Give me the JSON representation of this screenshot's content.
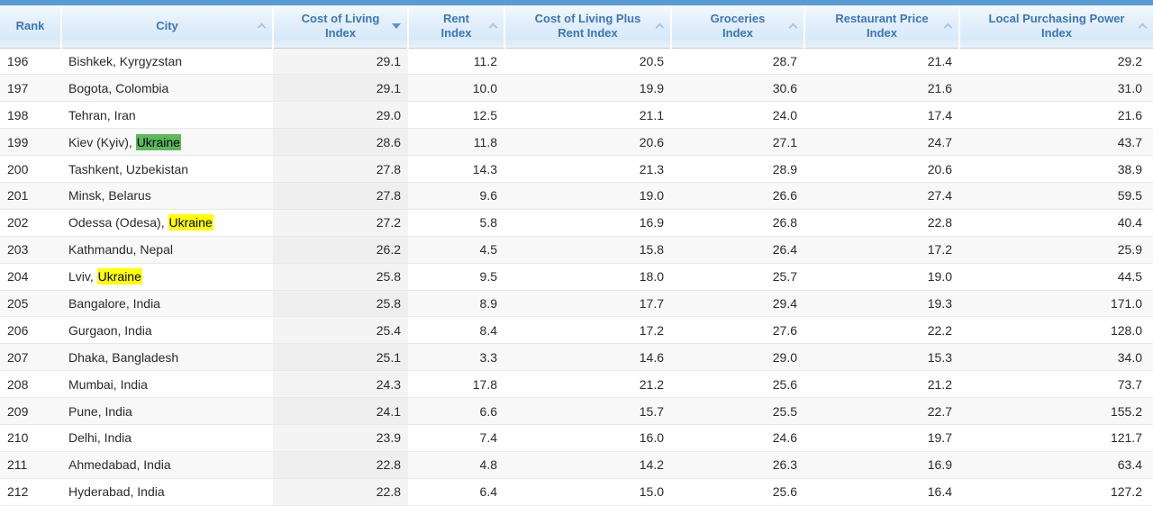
{
  "colors": {
    "top_bar": "#5b9bd5",
    "header_text": "#3a76b8",
    "active_sort_caret": "#5d93c7",
    "inactive_sort_caret": "#a6c8e8",
    "green_highlight": "#5cb85c",
    "yellow_highlight": "#ffff00"
  },
  "table": {
    "columns": [
      {
        "label": "Rank",
        "lines": [
          "Rank"
        ],
        "sort": "none",
        "caret_class": "caret none"
      },
      {
        "label": "City",
        "lines": [
          "City"
        ],
        "sort": "ascending-available",
        "caret_class": "caret up"
      },
      {
        "label": "Cost of Living Index",
        "lines": [
          "Cost of Living",
          "Index"
        ],
        "sort": "descending-active",
        "sorted": true,
        "caret_class": "caret down"
      },
      {
        "label": "Rent Index",
        "lines": [
          "Rent",
          "Index"
        ],
        "sort": "ascending-available",
        "caret_class": "caret up"
      },
      {
        "label": "Cost of Living Plus Rent Index",
        "lines": [
          "Cost of Living Plus",
          "Rent Index"
        ],
        "sort": "ascending-available",
        "caret_class": "caret up"
      },
      {
        "label": "Groceries Index",
        "lines": [
          "Groceries",
          "Index"
        ],
        "sort": "ascending-available",
        "caret_class": "caret up"
      },
      {
        "label": "Restaurant Price Index",
        "lines": [
          "Restaurant Price",
          "Index"
        ],
        "sort": "ascending-available",
        "caret_class": "caret up"
      },
      {
        "label": "Local Purchasing Power Index",
        "lines": [
          "Local Purchasing Power",
          "Index"
        ],
        "sort": "ascending-available",
        "caret_class": "caret up"
      }
    ],
    "rows": [
      {
        "rank": "196",
        "city_text": "Bishkek, Kyrgyzstan",
        "city_highlight": "",
        "city_highlight_class": "",
        "cost_of_living_index": "29.1",
        "rent_index": "11.2",
        "cost_of_living_plus_rent_index": "20.5",
        "groceries_index": "28.7",
        "restaurant_price_index": "21.4",
        "local_purchasing_power_index": "29.2"
      },
      {
        "rank": "197",
        "city_text": "Bogota, Colombia",
        "city_highlight": "",
        "city_highlight_class": "",
        "cost_of_living_index": "29.1",
        "rent_index": "10.0",
        "cost_of_living_plus_rent_index": "19.9",
        "groceries_index": "30.6",
        "restaurant_price_index": "21.6",
        "local_purchasing_power_index": "31.0"
      },
      {
        "rank": "198",
        "city_text": "Tehran, Iran",
        "city_highlight": "",
        "city_highlight_class": "",
        "cost_of_living_index": "29.0",
        "rent_index": "12.5",
        "cost_of_living_plus_rent_index": "21.1",
        "groceries_index": "24.0",
        "restaurant_price_index": "17.4",
        "local_purchasing_power_index": "21.6"
      },
      {
        "rank": "199",
        "city_text": "Kiev (Kyiv), ",
        "city_highlight": "Ukraine",
        "city_highlight_class": "city-hl green",
        "cost_of_living_index": "28.6",
        "rent_index": "11.8",
        "cost_of_living_plus_rent_index": "20.6",
        "groceries_index": "27.1",
        "restaurant_price_index": "24.7",
        "local_purchasing_power_index": "43.7"
      },
      {
        "rank": "200",
        "city_text": "Tashkent, Uzbekistan",
        "city_highlight": "",
        "city_highlight_class": "",
        "cost_of_living_index": "27.8",
        "rent_index": "14.3",
        "cost_of_living_plus_rent_index": "21.3",
        "groceries_index": "28.9",
        "restaurant_price_index": "20.6",
        "local_purchasing_power_index": "38.9"
      },
      {
        "rank": "201",
        "city_text": "Minsk, Belarus",
        "city_highlight": "",
        "city_highlight_class": "",
        "cost_of_living_index": "27.8",
        "rent_index": "9.6",
        "cost_of_living_plus_rent_index": "19.0",
        "groceries_index": "26.6",
        "restaurant_price_index": "27.4",
        "local_purchasing_power_index": "59.5"
      },
      {
        "rank": "202",
        "city_text": "Odessa (Odesa), ",
        "city_highlight": "Ukraine",
        "city_highlight_class": "city-hl yellow",
        "cost_of_living_index": "27.2",
        "rent_index": "5.8",
        "cost_of_living_plus_rent_index": "16.9",
        "groceries_index": "26.8",
        "restaurant_price_index": "22.8",
        "local_purchasing_power_index": "40.4"
      },
      {
        "rank": "203",
        "city_text": "Kathmandu, Nepal",
        "city_highlight": "",
        "city_highlight_class": "",
        "cost_of_living_index": "26.2",
        "rent_index": "4.5",
        "cost_of_living_plus_rent_index": "15.8",
        "groceries_index": "26.4",
        "restaurant_price_index": "17.2",
        "local_purchasing_power_index": "25.9"
      },
      {
        "rank": "204",
        "city_text": "Lviv, ",
        "city_highlight": "Ukraine",
        "city_highlight_class": "city-hl yellow",
        "cost_of_living_index": "25.8",
        "rent_index": "9.5",
        "cost_of_living_plus_rent_index": "18.0",
        "groceries_index": "25.7",
        "restaurant_price_index": "19.0",
        "local_purchasing_power_index": "44.5"
      },
      {
        "rank": "205",
        "city_text": "Bangalore, India",
        "city_highlight": "",
        "city_highlight_class": "",
        "cost_of_living_index": "25.8",
        "rent_index": "8.9",
        "cost_of_living_plus_rent_index": "17.7",
        "groceries_index": "29.4",
        "restaurant_price_index": "19.3",
        "local_purchasing_power_index": "171.0"
      },
      {
        "rank": "206",
        "city_text": "Gurgaon, India",
        "city_highlight": "",
        "city_highlight_class": "",
        "cost_of_living_index": "25.4",
        "rent_index": "8.4",
        "cost_of_living_plus_rent_index": "17.2",
        "groceries_index": "27.6",
        "restaurant_price_index": "22.2",
        "local_purchasing_power_index": "128.0"
      },
      {
        "rank": "207",
        "city_text": "Dhaka, Bangladesh",
        "city_highlight": "",
        "city_highlight_class": "",
        "cost_of_living_index": "25.1",
        "rent_index": "3.3",
        "cost_of_living_plus_rent_index": "14.6",
        "groceries_index": "29.0",
        "restaurant_price_index": "15.3",
        "local_purchasing_power_index": "34.0"
      },
      {
        "rank": "208",
        "city_text": "Mumbai, India",
        "city_highlight": "",
        "city_highlight_class": "",
        "cost_of_living_index": "24.3",
        "rent_index": "17.8",
        "cost_of_living_plus_rent_index": "21.2",
        "groceries_index": "25.6",
        "restaurant_price_index": "21.2",
        "local_purchasing_power_index": "73.7"
      },
      {
        "rank": "209",
        "city_text": "Pune, India",
        "city_highlight": "",
        "city_highlight_class": "",
        "cost_of_living_index": "24.1",
        "rent_index": "6.6",
        "cost_of_living_plus_rent_index": "15.7",
        "groceries_index": "25.5",
        "restaurant_price_index": "22.7",
        "local_purchasing_power_index": "155.2"
      },
      {
        "rank": "210",
        "city_text": "Delhi, India",
        "city_highlight": "",
        "city_highlight_class": "",
        "cost_of_living_index": "23.9",
        "rent_index": "7.4",
        "cost_of_living_plus_rent_index": "16.0",
        "groceries_index": "24.6",
        "restaurant_price_index": "19.7",
        "local_purchasing_power_index": "121.7"
      },
      {
        "rank": "211",
        "city_text": "Ahmedabad, India",
        "city_highlight": "",
        "city_highlight_class": "",
        "cost_of_living_index": "22.8",
        "rent_index": "4.8",
        "cost_of_living_plus_rent_index": "14.2",
        "groceries_index": "26.3",
        "restaurant_price_index": "16.9",
        "local_purchasing_power_index": "63.4"
      },
      {
        "rank": "212",
        "city_text": "Hyderabad, India",
        "city_highlight": "",
        "city_highlight_class": "",
        "cost_of_living_index": "22.8",
        "rent_index": "6.4",
        "cost_of_living_plus_rent_index": "15.0",
        "groceries_index": "25.6",
        "restaurant_price_index": "16.4",
        "local_purchasing_power_index": "127.2"
      }
    ]
  }
}
